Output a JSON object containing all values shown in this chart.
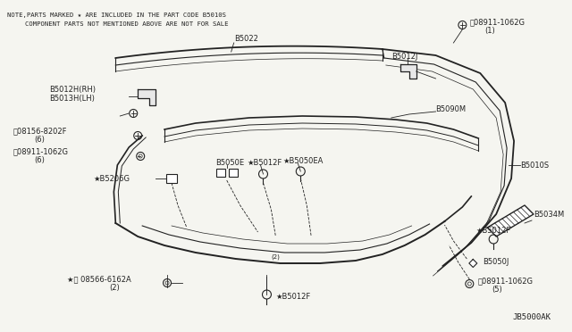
{
  "bg_color": "#f5f5f0",
  "note_line1": "NOTE,PARTS MARKED ★ ARE INCLUDED IN THE PART CODE B5010S",
  "note_line2": "COMPONENT PARTS NOT MENTIONED ABOVE ARE NOT FOR SALE",
  "diagram_id": "JB5000AK",
  "text_color": "#222222"
}
